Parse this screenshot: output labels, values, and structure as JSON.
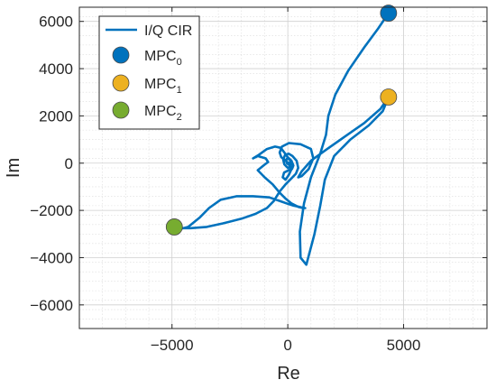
{
  "chart_data": {
    "type": "line",
    "xlabel": "Re",
    "ylabel": "Im",
    "xlim": [
      -9000,
      8600
    ],
    "ylim": [
      -7000,
      6600
    ],
    "x_ticks": [
      -5000,
      0,
      5000
    ],
    "x_tick_labels": [
      "−5000",
      "0",
      "5000"
    ],
    "y_ticks": [
      -6000,
      -4000,
      -2000,
      0,
      2000,
      4000,
      6000
    ],
    "y_tick_labels": [
      "−6000",
      "−4000",
      "−2000",
      "0",
      "2000",
      "4000",
      "6000"
    ],
    "grid": true,
    "minor_grid": true,
    "legend_position": "top-left",
    "colors": {
      "cir": "#0072BD",
      "mpc0": "#0072BD",
      "mpc1": "#EDB120",
      "mpc2": "#77AC30"
    },
    "series": [
      {
        "name": "I/Q CIR",
        "kind": "line",
        "x": [
          4350,
          3900,
          3300,
          2600,
          2050,
          1750,
          1650,
          1400,
          1000,
          700,
          520,
          550,
          800,
          1150,
          1400,
          1600,
          2000,
          2700,
          3500,
          4100,
          4350,
          4000,
          3300,
          2500,
          1700,
          1000,
          600,
          450,
          600,
          900,
          1100,
          1000,
          550,
          50,
          -250,
          -350,
          -280,
          -80,
          80,
          140,
          40,
          -100,
          -220,
          -160,
          40,
          180,
          240,
          160,
          0,
          -150,
          -300,
          -550,
          -900,
          -1250,
          -1500,
          -1300,
          -950,
          -850,
          -1050,
          -1300,
          -1000,
          -650,
          -350,
          -100,
          150,
          450,
          650,
          750,
          700,
          500,
          250,
          0,
          -350,
          -800,
          -1500,
          -2200,
          -2900,
          -3400,
          -3800,
          -4300,
          -4700,
          -4900,
          -4700,
          -4200,
          -3500,
          -2800,
          -2000,
          -1400,
          -900,
          -600,
          -350,
          -100,
          150,
          350,
          450,
          380,
          200,
          40,
          -120,
          -200,
          -150,
          0,
          120,
          150,
          80,
          -30,
          -80,
          -30,
          40,
          60,
          20
        ],
        "y": [
          6350,
          5700,
          4900,
          3900,
          2900,
          2000,
          1200,
          400,
          -600,
          -1700,
          -2900,
          -4000,
          -4300,
          -3000,
          -1800,
          -700,
          300,
          1000,
          1600,
          2200,
          2800,
          2300,
          1700,
          1150,
          600,
          100,
          -350,
          -600,
          -550,
          -250,
          200,
          600,
          800,
          850,
          700,
          450,
          250,
          100,
          -100,
          -300,
          -500,
          -700,
          -600,
          -400,
          -300,
          -250,
          -100,
          100,
          250,
          450,
          650,
          700,
          600,
          350,
          200,
          300,
          200,
          50,
          -100,
          -300,
          -600,
          -900,
          -1250,
          -1500,
          -1700,
          -1850,
          -1900,
          -1900,
          -1900,
          -1850,
          -1800,
          -1720,
          -1600,
          -1450,
          -1400,
          -1400,
          -1550,
          -1900,
          -2300,
          -2700,
          -2800,
          -2700,
          -2750,
          -2750,
          -2700,
          -2550,
          -2350,
          -2150,
          -1900,
          -1600,
          -1200,
          -900,
          -650,
          -450,
          -200,
          100,
          300,
          400,
          350,
          150,
          -50,
          -200,
          -150,
          0,
          150,
          200,
          100,
          -20,
          -50,
          0,
          20
        ]
      },
      {
        "name": "MPC_0",
        "label_base": "MPC",
        "label_sub": "0",
        "kind": "point",
        "x": [
          4350
        ],
        "y": [
          6350
        ]
      },
      {
        "name": "MPC_1",
        "label_base": "MPC",
        "label_sub": "1",
        "kind": "point",
        "x": [
          4350
        ],
        "y": [
          2800
        ]
      },
      {
        "name": "MPC_2",
        "label_base": "MPC",
        "label_sub": "2",
        "kind": "point",
        "x": [
          -4900
        ],
        "y": [
          -2700
        ]
      }
    ]
  }
}
